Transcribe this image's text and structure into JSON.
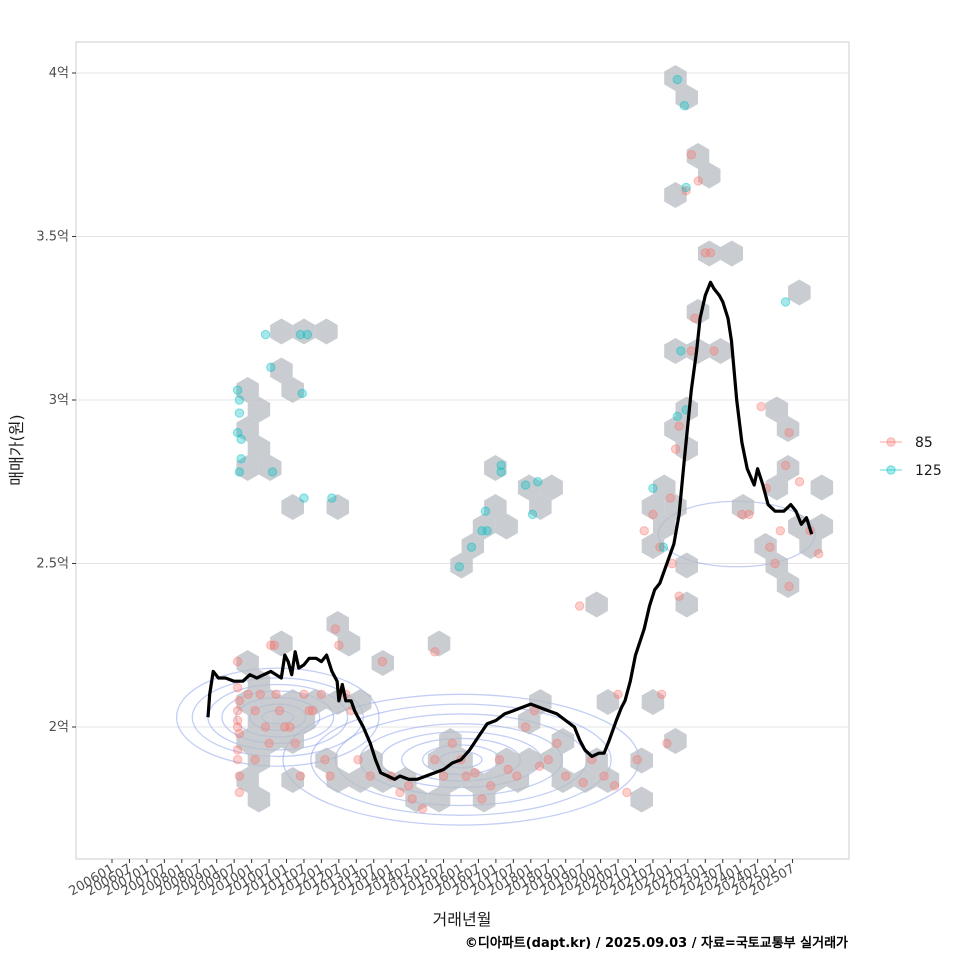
{
  "chart_data": {
    "type": "scatter",
    "title": "",
    "xlabel": "거래년월",
    "ylabel": "매매가(원)",
    "caption": "©디아파트(dapt.kr) / 2025.09.03 / 자료=국토교통부 실거래가",
    "x_ticks": [
      "200601",
      "200607",
      "200701",
      "200707",
      "200801",
      "200807",
      "200901",
      "200907",
      "201001",
      "201007",
      "201101",
      "201107",
      "201201",
      "201207",
      "201301",
      "201307",
      "201401",
      "201407",
      "201501",
      "201507",
      "201601",
      "201607",
      "201701",
      "201707",
      "201801",
      "201807",
      "201901",
      "201907",
      "202001",
      "202007",
      "202101",
      "202107",
      "202201",
      "202207",
      "202301",
      "202307",
      "202401",
      "202407",
      "202501",
      "202507"
    ],
    "y_ticks": [
      {
        "value": 2.0,
        "label": "2억"
      },
      {
        "value": 2.5,
        "label": "2.5억"
      },
      {
        "value": 3.0,
        "label": "3억"
      },
      {
        "value": 3.5,
        "label": "3.5억"
      },
      {
        "value": 4.0,
        "label": "4억"
      }
    ],
    "xlim": [
      0,
      44
    ],
    "ylim": [
      1.6,
      4.1
    ],
    "legend": {
      "position": "right",
      "entries": [
        {
          "name": "85",
          "color": "#f8766d"
        },
        {
          "name": "125",
          "color": "#00bfc4"
        }
      ]
    },
    "series": [
      {
        "name": "85",
        "color": "#f8766d",
        "points": [
          [
            7.2,
            2.2
          ],
          [
            7.2,
            2.12
          ],
          [
            7.3,
            2.08
          ],
          [
            7.2,
            2.05
          ],
          [
            7.2,
            2.02
          ],
          [
            7.2,
            2.0
          ],
          [
            7.3,
            1.98
          ],
          [
            7.2,
            1.93
          ],
          [
            7.2,
            1.9
          ],
          [
            7.3,
            1.85
          ],
          [
            7.3,
            1.8
          ],
          [
            7.8,
            2.1
          ],
          [
            8.5,
            2.1
          ],
          [
            8.2,
            2.05
          ],
          [
            8.8,
            2.0
          ],
          [
            9.0,
            1.95
          ],
          [
            8.2,
            1.9
          ],
          [
            9.1,
            2.25
          ],
          [
            9.3,
            2.25
          ],
          [
            9.4,
            2.1
          ],
          [
            9.6,
            2.05
          ],
          [
            9.9,
            2.0
          ],
          [
            10.2,
            2.0
          ],
          [
            10.5,
            1.95
          ],
          [
            11.0,
            2.1
          ],
          [
            11.3,
            2.05
          ],
          [
            10.8,
            1.85
          ],
          [
            11.5,
            2.05
          ],
          [
            12.0,
            2.1
          ],
          [
            12.2,
            1.9
          ],
          [
            12.5,
            1.85
          ],
          [
            12.8,
            2.3
          ],
          [
            13.0,
            2.25
          ],
          [
            13.4,
            2.1
          ],
          [
            13.7,
            2.05
          ],
          [
            14.1,
            1.9
          ],
          [
            14.8,
            1.85
          ],
          [
            15.5,
            2.2
          ],
          [
            16.0,
            1.85
          ],
          [
            16.5,
            1.8
          ],
          [
            17.0,
            1.82
          ],
          [
            17.2,
            1.78
          ],
          [
            17.8,
            1.75
          ],
          [
            18.5,
            2.23
          ],
          [
            18.5,
            1.9
          ],
          [
            19.0,
            1.85
          ],
          [
            19.5,
            1.95
          ],
          [
            20.0,
            1.9
          ],
          [
            20.3,
            1.85
          ],
          [
            20.8,
            1.86
          ],
          [
            21.2,
            1.78
          ],
          [
            21.7,
            1.82
          ],
          [
            22.2,
            1.9
          ],
          [
            22.7,
            1.87
          ],
          [
            23.2,
            1.85
          ],
          [
            23.7,
            2.0
          ],
          [
            24.2,
            2.05
          ],
          [
            24.5,
            1.88
          ],
          [
            25.0,
            1.9
          ],
          [
            25.5,
            1.95
          ],
          [
            26.0,
            1.85
          ],
          [
            26.8,
            2.37
          ],
          [
            27.0,
            1.83
          ],
          [
            27.5,
            1.9
          ],
          [
            28.2,
            1.85
          ],
          [
            28.8,
            1.82
          ],
          [
            29.0,
            2.1
          ],
          [
            29.5,
            1.8
          ],
          [
            30.1,
            1.9
          ],
          [
            30.5,
            2.6
          ],
          [
            31.0,
            2.65
          ],
          [
            31.4,
            2.55
          ],
          [
            31.5,
            2.1
          ],
          [
            31.8,
            1.95
          ],
          [
            32.0,
            2.7
          ],
          [
            32.1,
            2.5
          ],
          [
            32.3,
            2.85
          ],
          [
            32.5,
            2.92
          ],
          [
            32.5,
            2.4
          ],
          [
            32.9,
            3.64
          ],
          [
            33.2,
            3.75
          ],
          [
            33.6,
            3.67
          ],
          [
            33.4,
            3.25
          ],
          [
            33.2,
            3.15
          ],
          [
            34.0,
            3.45
          ],
          [
            34.3,
            3.45
          ],
          [
            34.5,
            3.15
          ],
          [
            36.1,
            2.65
          ],
          [
            36.5,
            2.65
          ],
          [
            37.2,
            2.98
          ],
          [
            37.5,
            2.73
          ],
          [
            37.7,
            2.55
          ],
          [
            38.0,
            2.5
          ],
          [
            38.3,
            2.6
          ],
          [
            38.6,
            2.8
          ],
          [
            38.8,
            2.9
          ],
          [
            38.8,
            2.43
          ],
          [
            39.4,
            2.75
          ],
          [
            40.0,
            2.6
          ],
          [
            40.5,
            2.53
          ]
        ]
      },
      {
        "name": "125",
        "color": "#00bfc4",
        "points": [
          [
            7.2,
            3.03
          ],
          [
            7.3,
            3.0
          ],
          [
            7.3,
            2.96
          ],
          [
            7.2,
            2.9
          ],
          [
            7.4,
            2.88
          ],
          [
            7.4,
            2.82
          ],
          [
            7.3,
            2.78
          ],
          [
            8.8,
            3.2
          ],
          [
            9.1,
            3.1
          ],
          [
            9.2,
            2.78
          ],
          [
            10.8,
            3.2
          ],
          [
            11.2,
            3.2
          ],
          [
            10.9,
            3.02
          ],
          [
            11.0,
            2.7
          ],
          [
            12.6,
            2.7
          ],
          [
            19.9,
            2.49
          ],
          [
            20.6,
            2.55
          ],
          [
            21.2,
            2.6
          ],
          [
            21.5,
            2.6
          ],
          [
            21.4,
            2.66
          ],
          [
            22.3,
            2.78
          ],
          [
            22.3,
            2.8
          ],
          [
            23.7,
            2.74
          ],
          [
            24.1,
            2.65
          ],
          [
            24.4,
            2.75
          ],
          [
            31.0,
            2.73
          ],
          [
            31.6,
            2.55
          ],
          [
            32.4,
            3.98
          ],
          [
            32.8,
            3.9
          ],
          [
            32.9,
            3.65
          ],
          [
            32.6,
            3.15
          ],
          [
            32.4,
            2.95
          ],
          [
            32.9,
            2.97
          ],
          [
            38.6,
            3.3
          ]
        ]
      }
    ],
    "trend_line": {
      "name": "moving-average",
      "color": "#000000",
      "points": [
        [
          5.5,
          2.03
        ],
        [
          5.6,
          2.1
        ],
        [
          5.8,
          2.17
        ],
        [
          6.1,
          2.15
        ],
        [
          6.5,
          2.15
        ],
        [
          7.0,
          2.14
        ],
        [
          7.5,
          2.14
        ],
        [
          7.9,
          2.16
        ],
        [
          8.3,
          2.15
        ],
        [
          8.7,
          2.16
        ],
        [
          9.1,
          2.17
        ],
        [
          9.4,
          2.16
        ],
        [
          9.7,
          2.15
        ],
        [
          9.9,
          2.22
        ],
        [
          10.1,
          2.2
        ],
        [
          10.3,
          2.16
        ],
        [
          10.5,
          2.23
        ],
        [
          10.7,
          2.18
        ],
        [
          11.0,
          2.19
        ],
        [
          11.3,
          2.21
        ],
        [
          11.7,
          2.21
        ],
        [
          12.0,
          2.2
        ],
        [
          12.3,
          2.22
        ],
        [
          12.6,
          2.17
        ],
        [
          12.9,
          2.14
        ],
        [
          13.0,
          2.08
        ],
        [
          13.2,
          2.13
        ],
        [
          13.4,
          2.08
        ],
        [
          13.7,
          2.08
        ],
        [
          13.9,
          2.05
        ],
        [
          14.1,
          2.03
        ],
        [
          14.4,
          2.0
        ],
        [
          14.8,
          1.95
        ],
        [
          15.1,
          1.9
        ],
        [
          15.4,
          1.86
        ],
        [
          15.8,
          1.85
        ],
        [
          16.2,
          1.84
        ],
        [
          16.5,
          1.85
        ],
        [
          17.0,
          1.84
        ],
        [
          17.5,
          1.84
        ],
        [
          18.0,
          1.85
        ],
        [
          18.5,
          1.86
        ],
        [
          19.0,
          1.87
        ],
        [
          19.5,
          1.89
        ],
        [
          20.0,
          1.9
        ],
        [
          20.5,
          1.93
        ],
        [
          21.0,
          1.97
        ],
        [
          21.5,
          2.01
        ],
        [
          22.0,
          2.02
        ],
        [
          22.5,
          2.04
        ],
        [
          23.0,
          2.05
        ],
        [
          23.5,
          2.06
        ],
        [
          24.0,
          2.07
        ],
        [
          24.5,
          2.06
        ],
        [
          25.0,
          2.05
        ],
        [
          25.5,
          2.04
        ],
        [
          26.0,
          2.02
        ],
        [
          26.5,
          2.0
        ],
        [
          26.8,
          1.96
        ],
        [
          27.1,
          1.93
        ],
        [
          27.5,
          1.91
        ],
        [
          27.9,
          1.92
        ],
        [
          28.2,
          1.92
        ],
        [
          28.5,
          1.96
        ],
        [
          28.9,
          2.02
        ],
        [
          29.2,
          2.06
        ],
        [
          29.4,
          2.08
        ],
        [
          29.7,
          2.14
        ],
        [
          30.0,
          2.22
        ],
        [
          30.5,
          2.3
        ],
        [
          30.8,
          2.37
        ],
        [
          31.1,
          2.42
        ],
        [
          31.4,
          2.44
        ],
        [
          31.8,
          2.5
        ],
        [
          32.2,
          2.56
        ],
        [
          32.5,
          2.65
        ],
        [
          32.8,
          2.82
        ],
        [
          33.2,
          3.03
        ],
        [
          33.5,
          3.15
        ],
        [
          33.7,
          3.25
        ],
        [
          34.0,
          3.32
        ],
        [
          34.3,
          3.36
        ],
        [
          34.5,
          3.34
        ],
        [
          34.8,
          3.32
        ],
        [
          35.0,
          3.3
        ],
        [
          35.3,
          3.25
        ],
        [
          35.5,
          3.18
        ],
        [
          35.8,
          3.0
        ],
        [
          36.1,
          2.87
        ],
        [
          36.4,
          2.79
        ],
        [
          36.8,
          2.74
        ],
        [
          37.0,
          2.79
        ],
        [
          37.3,
          2.74
        ],
        [
          37.6,
          2.68
        ],
        [
          38.0,
          2.66
        ],
        [
          38.5,
          2.66
        ],
        [
          38.9,
          2.68
        ],
        [
          39.2,
          2.66
        ],
        [
          39.5,
          2.62
        ],
        [
          39.8,
          2.64
        ],
        [
          40.1,
          2.59
        ]
      ]
    }
  }
}
